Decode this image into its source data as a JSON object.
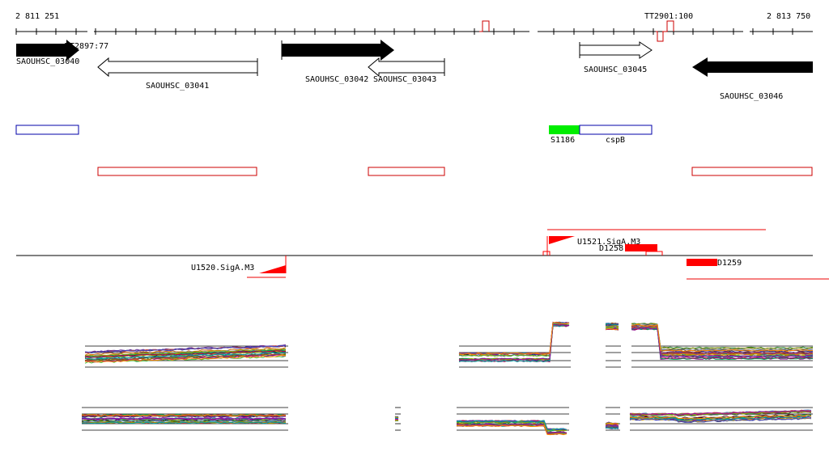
{
  "coords": {
    "start": "2 811 251",
    "end": "2 813 750"
  },
  "terminators": [
    {
      "label": "TT2897:77"
    },
    {
      "label": "TT2901:100"
    }
  ],
  "genes": [
    {
      "name": "SAOUHSC_03040",
      "strand": "+",
      "style": "filled"
    },
    {
      "name": "SAOUHSC_03041",
      "strand": "-",
      "style": "open"
    },
    {
      "name": "SAOUHSC_03042",
      "strand": "+",
      "style": "filled"
    },
    {
      "name": "SAOUHSC_03043",
      "strand": "-",
      "style": "open"
    },
    {
      "name": "SAOUHSC_03045",
      "strand": "+",
      "style": "open"
    },
    {
      "name": "SAOUHSC_03046",
      "strand": "-",
      "style": "filled"
    }
  ],
  "features": [
    {
      "name": "S1186",
      "color": "#00ee00"
    },
    {
      "name": "cspB",
      "color": "#0000aa"
    }
  ],
  "promoters": [
    {
      "name": "U1520.SigA.M3",
      "strand": "-"
    },
    {
      "name": "U1521.SigA.M3",
      "strand": "+"
    }
  ],
  "segments": [
    {
      "name": "D1258"
    },
    {
      "name": "D1259"
    }
  ],
  "colors": {
    "gene_fill": "#000000",
    "forward_feature": "#0000aa",
    "reverse_feature": "#cc0000",
    "promoter": "#ff0000",
    "segment": "#ff0000",
    "tick": "#000000"
  }
}
